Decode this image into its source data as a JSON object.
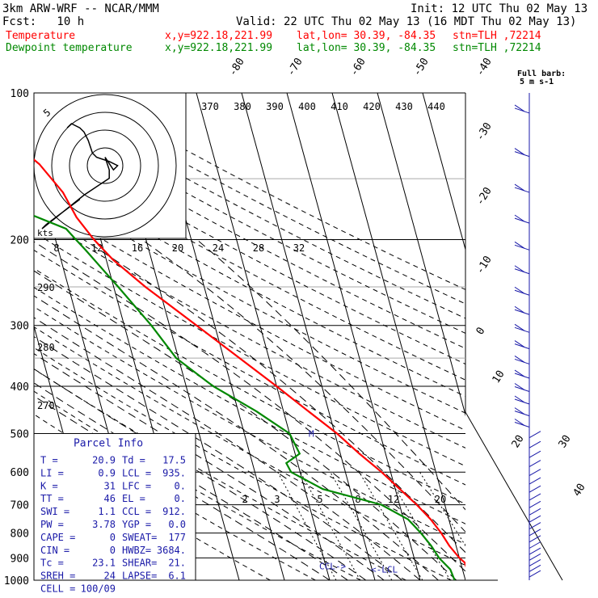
{
  "header": {
    "model": "3km ARW-WRF -- NCAR/MMM",
    "init": "Init: 12 UTC Thu 02 May 13",
    "fcst": "Fcst:   10 h",
    "valid": "Valid: 22 UTC Thu 02 May 13 (16 MDT Thu 02 May 13)"
  },
  "legend": [
    {
      "name": "Temperature",
      "color": "#ff0000",
      "xy": "x,y=922.18,221.99",
      "latlon": "lat,lon= 30.39, -84.35",
      "stn": "stn=TLH ,72214"
    },
    {
      "name": "Dewpoint temperature",
      "color": "#008800",
      "xy": "x,y=922.18,221.99",
      "latlon": "lat,lon= 30.39, -84.35",
      "stn": "stn=TLH ,72214"
    }
  ],
  "wind_title": [
    "Full barb:",
    "5 m s-1"
  ],
  "hodograph": {
    "unit_label": "kts",
    "ring_label": "5",
    "speed_labels": [
      "8",
      "12",
      "16",
      "20",
      "24",
      "28",
      "32"
    ],
    "path_kts": [
      [
        -6,
        -8
      ],
      [
        -14,
        -14
      ],
      [
        -15,
        -15
      ],
      [
        -10,
        -11
      ],
      [
        -5,
        -7
      ],
      [
        1,
        -3
      ],
      [
        1,
        -1
      ],
      [
        0,
        2
      ],
      [
        2,
        -1
      ],
      [
        3,
        0
      ],
      [
        1,
        1
      ],
      [
        -2,
        2
      ],
      [
        -3,
        3
      ],
      [
        -4,
        6
      ],
      [
        -5,
        8
      ],
      [
        -6,
        9
      ],
      [
        -8,
        10
      ],
      [
        -9,
        9
      ]
    ]
  },
  "parcel_info": {
    "title": "Parcel Info",
    "rows": [
      [
        "T   =",
        "20.9",
        "Td  =",
        "17.5"
      ],
      [
        "LI  =",
        "0.9",
        "LCL =",
        "935."
      ],
      [
        "K   =",
        "31",
        "LFC =",
        "0."
      ],
      [
        "TT  =",
        "46",
        "EL  =",
        "0."
      ],
      [
        "SWI =",
        "1.1",
        "CCL =",
        "912."
      ],
      [
        "PW  =",
        "3.78",
        "YGP =",
        "0.0"
      ],
      [
        "CAPE =",
        "0",
        "SWEAT=",
        "177"
      ],
      [
        "CIN  =",
        "0",
        "HWBZ=",
        "3684."
      ],
      [
        "Tc   =",
        "23.1",
        "SHEAR=",
        "21."
      ],
      [
        "SREH =",
        "24",
        "LAPSE=",
        "6.1"
      ],
      [
        "CELL =",
        "100/09",
        "",
        ""
      ]
    ]
  },
  "markers": {
    "lcl_left": "CCL->",
    "lcl_right": "<-LCL",
    "m": "M"
  },
  "chart_data": {
    "type": "line",
    "title": "",
    "y_axis": "pressure (hPa), log scale",
    "pressure_levels": [
      100,
      200,
      300,
      400,
      500,
      600,
      700,
      800,
      900,
      1000
    ],
    "ylim": [
      1000,
      100
    ],
    "xlim_degC": [
      -31,
      44
    ],
    "isotherm_labels": [
      "-80",
      "-70",
      "-60",
      "-50",
      "-40",
      "-30",
      "-20",
      "-10",
      "0",
      "10",
      "20",
      "30",
      "40"
    ],
    "theta_labels": [
      "370",
      "380",
      "390",
      "400",
      "410",
      "420",
      "430",
      "440"
    ],
    "dry_adiabat_labels": [
      "290",
      "280",
      "270"
    ],
    "mixing_ratio_labels": [
      "2",
      "3",
      "5",
      "8",
      "12",
      "20"
    ],
    "series": [
      {
        "name": "Temperature",
        "color": "#ff0000",
        "points": [
          [
            1000,
            26.0
          ],
          [
            985,
            23.5
          ],
          [
            950,
            21.0
          ],
          [
            920,
            20.9
          ],
          [
            900,
            20.0
          ],
          [
            850,
            18.5
          ],
          [
            800,
            17.5
          ],
          [
            750,
            16.0
          ],
          [
            700,
            13.8
          ],
          [
            650,
            11.0
          ],
          [
            600,
            8.0
          ],
          [
            550,
            4.2
          ],
          [
            500,
            0.5
          ],
          [
            450,
            -4.5
          ],
          [
            400,
            -10.0
          ],
          [
            350,
            -16.5
          ],
          [
            300,
            -24.0
          ],
          [
            250,
            -33.0
          ],
          [
            220,
            -38.5
          ],
          [
            200,
            -41.5
          ],
          [
            180,
            -44.0
          ],
          [
            160,
            -45.5
          ],
          [
            140,
            -49.0
          ],
          [
            125,
            -54.0
          ],
          [
            100,
            -61.0
          ]
        ]
      },
      {
        "name": "Dewpoint temperature",
        "color": "#008800",
        "points": [
          [
            1000,
            17.6
          ],
          [
            950,
            17.3
          ],
          [
            900,
            15.5
          ],
          [
            850,
            14.5
          ],
          [
            800,
            13.0
          ],
          [
            750,
            11.0
          ],
          [
            700,
            6.0
          ],
          [
            650,
            -6.0
          ],
          [
            600,
            -12.0
          ],
          [
            575,
            -12.5
          ],
          [
            550,
            -9.0
          ],
          [
            500,
            -10.0
          ],
          [
            450,
            -16.0
          ],
          [
            400,
            -24.0
          ],
          [
            350,
            -30.5
          ],
          [
            300,
            -34.0
          ],
          [
            250,
            -39.0
          ],
          [
            210,
            -44.0
          ],
          [
            200,
            -45.5
          ],
          [
            190,
            -47.0
          ],
          [
            170,
            -58.5
          ],
          [
            150,
            -67.0
          ],
          [
            130,
            -68.5
          ],
          [
            115,
            -69.0
          ],
          [
            100,
            -70.0
          ]
        ]
      }
    ]
  }
}
